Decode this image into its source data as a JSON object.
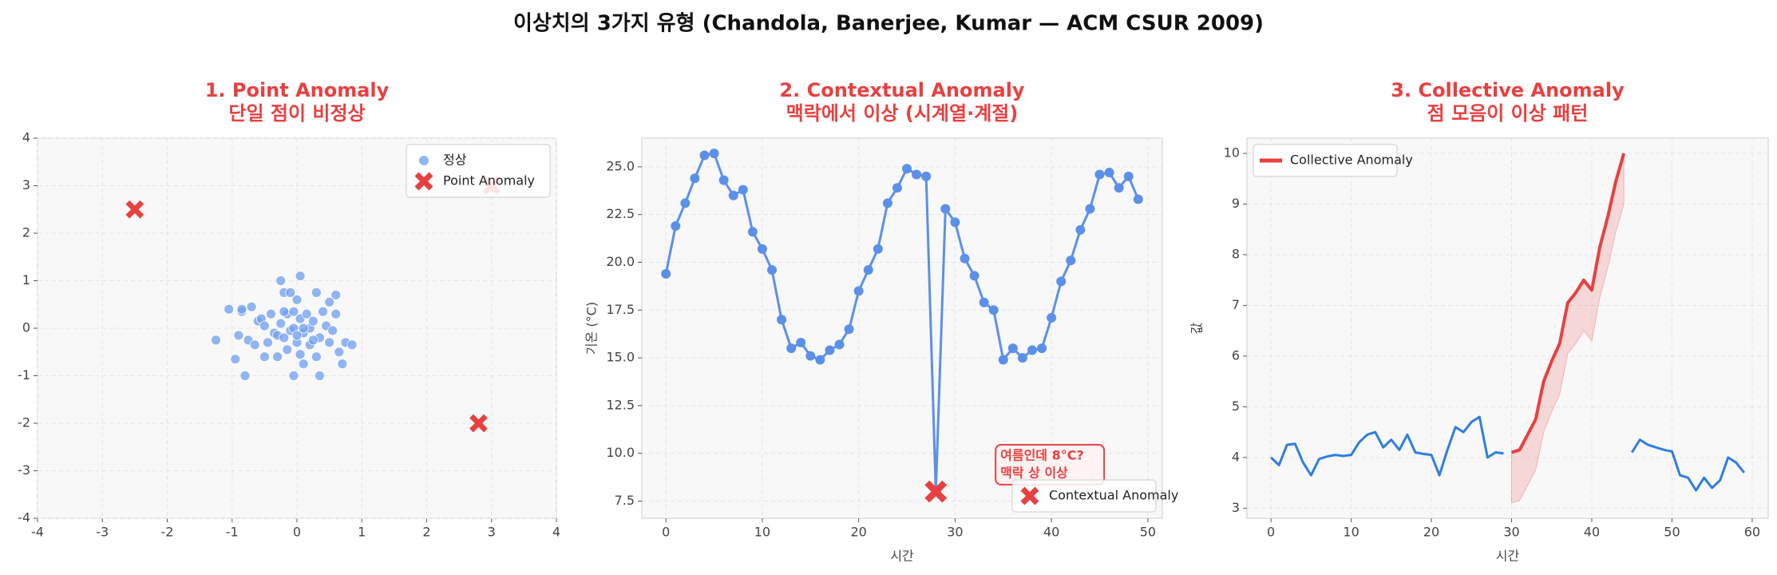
{
  "title": "이상치의 3가지 유형 (Chandola, Banerjee, Kumar — ACM CSUR 2009)",
  "chart_data": [
    {
      "type": "scatter",
      "title": "1. Point Anomaly",
      "subtitle": "단일 점이 비정상",
      "xlim": [
        -4,
        4
      ],
      "ylim": [
        -4,
        4
      ],
      "xticks": [
        -4,
        -3,
        -2,
        -1,
        0,
        1,
        2,
        3,
        4
      ],
      "yticks": [
        -4,
        -3,
        -2,
        -1,
        0,
        1,
        2,
        3,
        4
      ],
      "grid": true,
      "legend": "upper right",
      "series": [
        {
          "name": "정상",
          "color": "#6f9ef0",
          "marker": "circle",
          "x": [
            -1.25,
            -1.05,
            -0.95,
            -0.9,
            -0.85,
            -0.85,
            -0.8,
            -0.75,
            -0.7,
            -0.65,
            -0.6,
            -0.55,
            -0.5,
            -0.5,
            -0.45,
            -0.4,
            -0.35,
            -0.3,
            -0.3,
            -0.25,
            -0.25,
            -0.2,
            -0.2,
            -0.15,
            -0.15,
            -0.1,
            -0.1,
            -0.05,
            -0.05,
            0,
            0,
            0.05,
            0.05,
            0.05,
            0.1,
            0.1,
            0.15,
            0.2,
            0.2,
            0.25,
            0.3,
            0.3,
            0.35,
            0.35,
            0.4,
            0.45,
            0.5,
            0.5,
            0.55,
            0.6,
            0.6,
            0.65,
            0.7,
            0.75,
            0.85,
            -0.05,
            0.1,
            -0.2,
            0,
            0.25
          ],
          "values": [
            -0.25,
            0.4,
            -0.65,
            -0.15,
            0.35,
            0.4,
            -1.0,
            -0.25,
            0.45,
            -0.35,
            0.15,
            0.2,
            -0.6,
            0.05,
            -0.3,
            0.3,
            -0.1,
            -0.15,
            -0.6,
            1.0,
            0.1,
            -0.2,
            0.75,
            0.3,
            -0.45,
            -0.05,
            0.75,
            -1.0,
            0.35,
            0.6,
            -0.3,
            -0.55,
            0.2,
            1.1,
            -0.75,
            -0.1,
            0.3,
            -0.35,
            0,
            0.15,
            -0.6,
            0.75,
            -1.0,
            -0.2,
            0.35,
            0.05,
            -0.3,
            0.55,
            -0.05,
            0.3,
            0.7,
            -0.5,
            -0.75,
            -0.3,
            -0.35,
            0,
            0,
            0.35,
            -0.15,
            -0.25
          ]
        },
        {
          "name": "Point Anomaly",
          "color": "#e84040",
          "marker": "x",
          "x": [
            -2.5,
            3,
            2.8
          ],
          "values": [
            2.5,
            3,
            -2
          ]
        }
      ]
    },
    {
      "type": "line",
      "title": "2. Contextual Anomaly",
      "subtitle": "맥락에서 이상 (시계열·계절)",
      "xlabel": "시간",
      "ylabel": "기온 (°C)",
      "xlim": [
        -2.5,
        51.5
      ],
      "ylim": [
        6.6,
        26.5
      ],
      "xticks": [
        0,
        10,
        20,
        30,
        40,
        50
      ],
      "yticks": [
        7.5,
        {
          "value": 10,
          "label": "10.0"
        },
        12.5,
        {
          "value": 15,
          "label": "15.0"
        },
        17.5,
        {
          "value": 20,
          "label": "20.0"
        },
        22.5,
        {
          "value": 25,
          "label": "25.0"
        }
      ],
      "grid": true,
      "legend": "lower right",
      "annotation": [
        "여름인데 8°C?",
        "맥락 상 이상"
      ],
      "x": [
        0,
        1,
        2,
        3,
        4,
        5,
        6,
        7,
        8,
        9,
        10,
        11,
        12,
        13,
        14,
        15,
        16,
        17,
        18,
        19,
        20,
        21,
        22,
        23,
        24,
        25,
        26,
        27,
        28,
        29,
        30,
        31,
        32,
        33,
        34,
        35,
        36,
        37,
        38,
        39,
        40,
        41,
        42,
        43,
        44,
        45,
        46,
        47,
        48,
        49
      ],
      "series": [
        {
          "color": "#5b90ea",
          "markers": true,
          "values": [
            19.4,
            21.9,
            23.1,
            24.4,
            25.6,
            25.7,
            24.3,
            23.5,
            23.8,
            21.6,
            20.7,
            19.6,
            17.0,
            15.5,
            15.8,
            15.1,
            14.9,
            15.4,
            15.7,
            16.5,
            18.5,
            19.6,
            20.7,
            23.1,
            23.9,
            24.9,
            24.6,
            24.5,
            8.0,
            22.8,
            22.1,
            20.2,
            19.3,
            17.9,
            17.5,
            14.9,
            15.5,
            15.0,
            15.4,
            15.5,
            17.1,
            19.0,
            20.1,
            21.7,
            22.8,
            24.6,
            24.7,
            23.9,
            24.5,
            23.3
          ]
        }
      ],
      "anomalies": {
        "name": "Contextual Anomaly",
        "color": "#e84040",
        "x": [
          28
        ],
        "values": [
          8
        ]
      }
    },
    {
      "type": "line",
      "title": "3. Collective Anomaly",
      "subtitle": "점 모음이 이상 패턴",
      "xlabel": "시간",
      "ylabel": "값",
      "xlim": [
        -3,
        62
      ],
      "ylim": [
        2.8,
        10.3
      ],
      "xticks": [
        0,
        10,
        20,
        30,
        40,
        50,
        60
      ],
      "yticks": [
        3,
        4,
        5,
        6,
        7,
        8,
        9,
        10
      ],
      "grid": true,
      "legend": "upper left",
      "x": [
        0,
        1,
        2,
        3,
        4,
        5,
        6,
        7,
        8,
        9,
        10,
        11,
        12,
        13,
        14,
        15,
        16,
        17,
        18,
        19,
        20,
        21,
        22,
        23,
        24,
        25,
        26,
        27,
        28,
        29,
        30,
        31,
        32,
        33,
        34,
        35,
        36,
        37,
        38,
        39,
        40,
        41,
        42,
        43,
        44,
        45,
        46,
        47,
        48,
        49,
        50,
        51,
        52,
        53,
        54,
        55,
        56,
        57,
        58,
        59
      ],
      "series": [
        {
          "color": "#2f7de1",
          "values": [
            4.0,
            3.85,
            4.25,
            4.27,
            3.9,
            3.65,
            3.97,
            4.02,
            4.05,
            4.03,
            4.05,
            4.3,
            4.45,
            4.5,
            4.2,
            4.35,
            4.15,
            4.45,
            4.1,
            4.07,
            4.05,
            3.65,
            4.15,
            4.6,
            4.5,
            4.7,
            4.8,
            4.0,
            4.1,
            4.08,
            null,
            null,
            null,
            null,
            null,
            null,
            null,
            null,
            null,
            null,
            null,
            null,
            null,
            null,
            null,
            4.1,
            4.35,
            4.25,
            4.2,
            4.15,
            4.12,
            3.65,
            3.6,
            3.35,
            3.6,
            3.4,
            3.55,
            4.0,
            3.9,
            3.7
          ]
        },
        {
          "name": "Collective Anomaly",
          "color": "#e84040",
          "width": 4,
          "values": [
            null,
            null,
            null,
            null,
            null,
            null,
            null,
            null,
            null,
            null,
            null,
            null,
            null,
            null,
            null,
            null,
            null,
            null,
            null,
            null,
            null,
            null,
            null,
            null,
            null,
            null,
            null,
            null,
            null,
            null,
            4.1,
            4.15,
            4.45,
            4.75,
            5.5,
            5.9,
            6.25,
            7.05,
            7.25,
            7.5,
            7.3,
            8.15,
            8.75,
            9.45,
            10.0,
            null,
            null,
            null,
            null,
            null,
            null,
            null,
            null,
            null,
            null,
            null,
            null,
            null,
            null,
            null
          ],
          "band_lower": [
            null,
            null,
            null,
            null,
            null,
            null,
            null,
            null,
            null,
            null,
            null,
            null,
            null,
            null,
            null,
            null,
            null,
            null,
            null,
            null,
            null,
            null,
            null,
            null,
            null,
            null,
            null,
            null,
            null,
            null,
            3.1,
            3.15,
            3.45,
            3.75,
            4.5,
            4.9,
            5.25,
            6.05,
            6.25,
            6.5,
            6.3,
            7.15,
            7.75,
            8.45,
            9.0,
            null,
            null,
            null,
            null,
            null,
            null,
            null,
            null,
            null,
            null,
            null,
            null,
            null,
            null,
            null
          ]
        }
      ]
    }
  ]
}
